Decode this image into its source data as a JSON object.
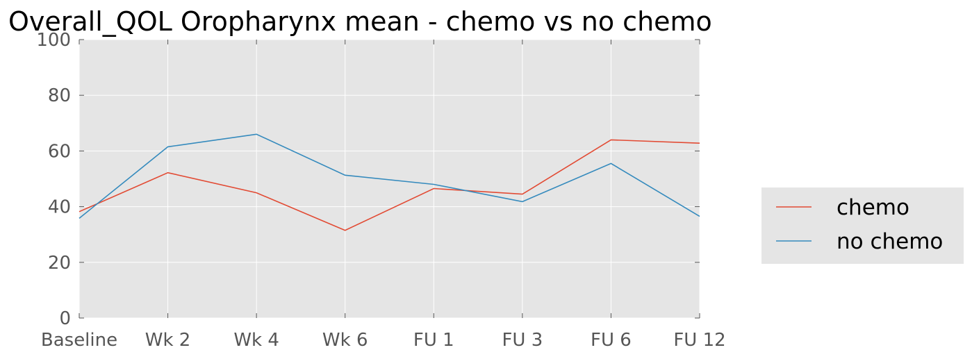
{
  "chart_data": {
    "type": "line",
    "title": "Overall_QOL Oropharynx mean - chemo vs no chemo",
    "xlabel": "",
    "ylabel": "",
    "categories": [
      "Baseline",
      "Wk 2",
      "Wk 4",
      "Wk 6",
      "FU 1",
      "FU 3",
      "FU 6",
      "FU 12"
    ],
    "ylim": [
      0,
      100
    ],
    "yticks": [
      0,
      20,
      40,
      60,
      80,
      100
    ],
    "grid": true,
    "legend_position": "right",
    "series": [
      {
        "name": "chemo",
        "color": "#E24A33",
        "values": [
          38.2,
          52.2,
          45.0,
          31.5,
          46.5,
          44.5,
          64.0,
          62.8
        ]
      },
      {
        "name": "no chemo",
        "color": "#348ABD",
        "values": [
          35.8,
          61.5,
          66.0,
          51.3,
          48.0,
          41.8,
          55.5,
          36.5
        ]
      }
    ]
  }
}
